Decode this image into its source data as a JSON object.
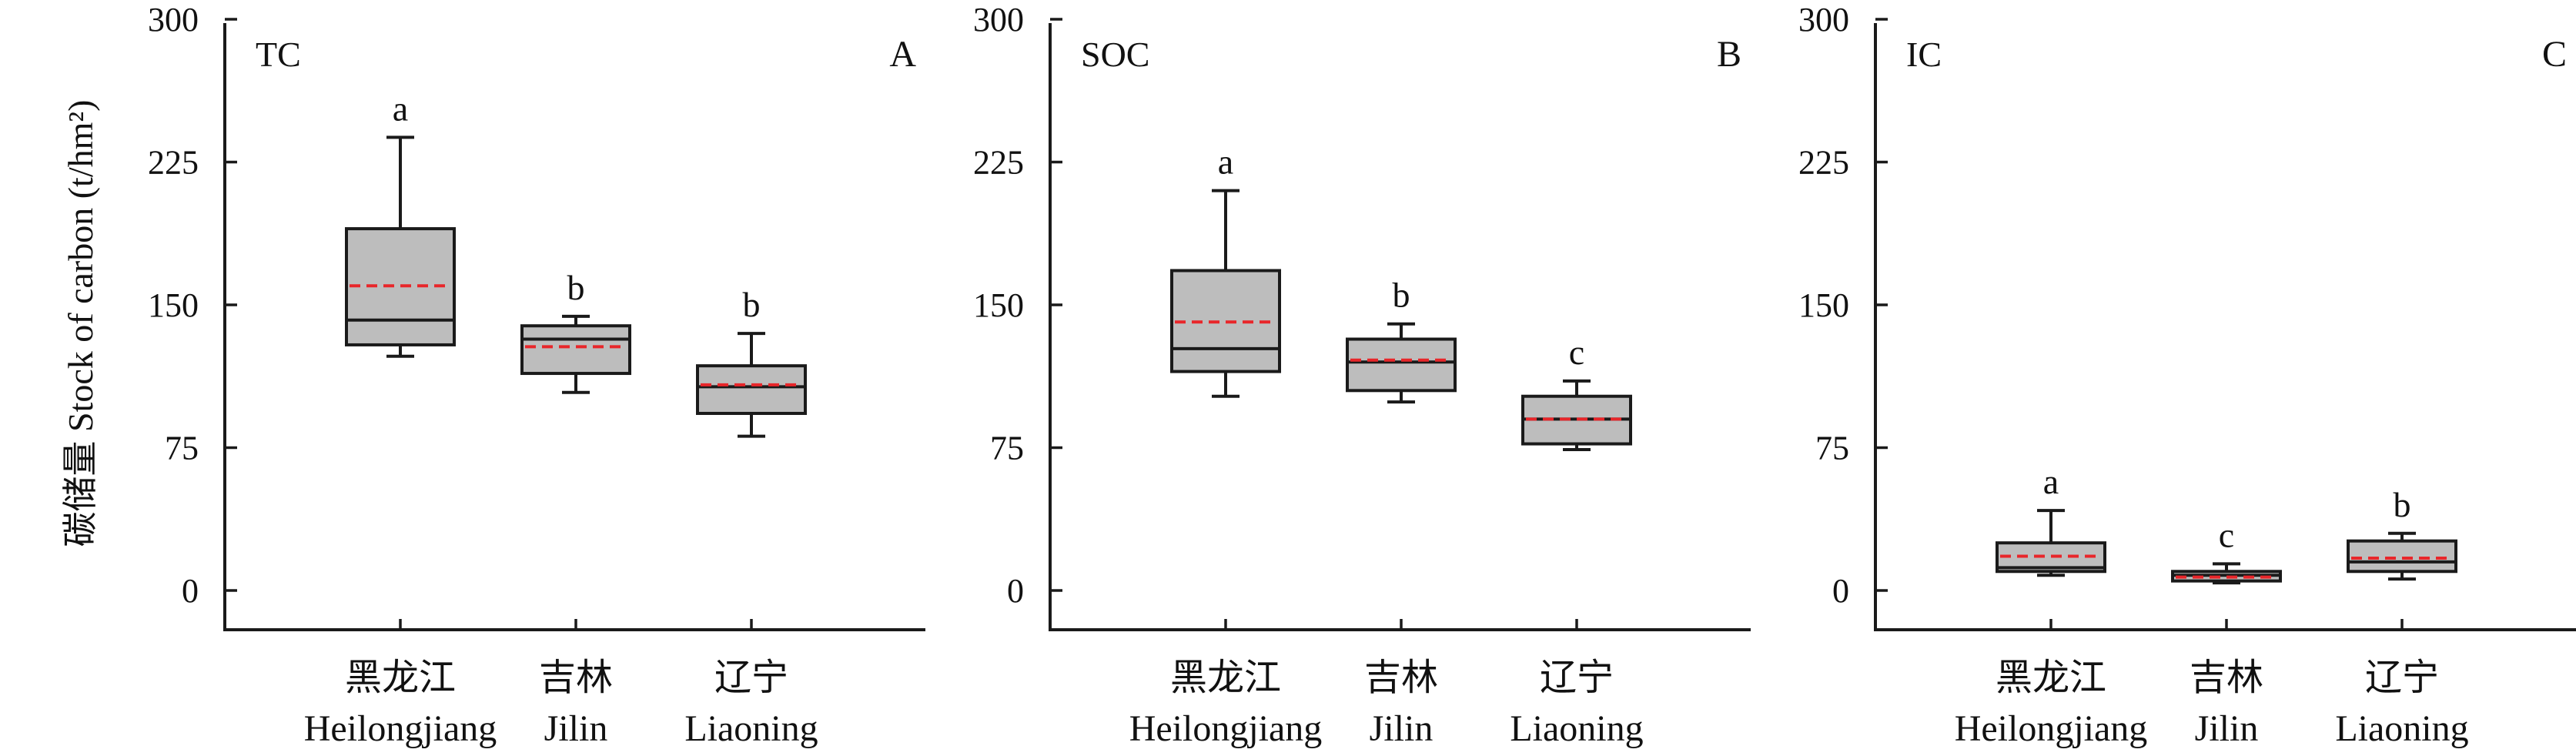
{
  "chart_data": [
    {
      "type": "box",
      "title": "TC",
      "panel_letter": "A",
      "ylabel": "碳储量 Stock of carbon (t/hm²)",
      "ylim": [
        -20,
        300
      ],
      "yticks": [
        0,
        75,
        150,
        225,
        300
      ],
      "categories": [
        {
          "cn": "黑龙江",
          "en": "Heilongjiang"
        },
        {
          "cn": "吉林",
          "en": "Jilin"
        },
        {
          "cn": "辽宁",
          "en": "Liaoning"
        }
      ],
      "boxes": [
        {
          "min": 123,
          "q1": 129,
          "median": 142,
          "q3": 190,
          "max": 238,
          "mean": 160,
          "sig": "a"
        },
        {
          "min": 104,
          "q1": 114,
          "median": 132,
          "q3": 139,
          "max": 144,
          "mean": 128,
          "sig": "b"
        },
        {
          "min": 81,
          "q1": 93,
          "median": 107,
          "q3": 118,
          "max": 135,
          "mean": 108,
          "sig": "b"
        }
      ]
    },
    {
      "type": "box",
      "title": "SOC",
      "panel_letter": "B",
      "ylabel": "",
      "ylim": [
        -20,
        300
      ],
      "yticks": [
        0,
        75,
        150,
        225,
        300
      ],
      "categories": [
        {
          "cn": "黑龙江",
          "en": "Heilongjiang"
        },
        {
          "cn": "吉林",
          "en": "Jilin"
        },
        {
          "cn": "辽宁",
          "en": "Liaoning"
        }
      ],
      "boxes": [
        {
          "min": 102,
          "q1": 115,
          "median": 127,
          "q3": 168,
          "max": 210,
          "mean": 141,
          "sig": "a"
        },
        {
          "min": 99,
          "q1": 105,
          "median": 120,
          "q3": 132,
          "max": 140,
          "mean": 121,
          "sig": "b"
        },
        {
          "min": 74,
          "q1": 77,
          "median": 90,
          "q3": 102,
          "max": 110,
          "mean": 90,
          "sig": "c"
        }
      ]
    },
    {
      "type": "box",
      "title": "IC",
      "panel_letter": "C",
      "ylabel": "",
      "ylim": [
        -20,
        300
      ],
      "yticks": [
        0,
        75,
        150,
        225,
        300
      ],
      "categories": [
        {
          "cn": "黑龙江",
          "en": "Heilongjiang"
        },
        {
          "cn": "吉林",
          "en": "Jilin"
        },
        {
          "cn": "辽宁",
          "en": "Liaoning"
        }
      ],
      "boxes": [
        {
          "min": 8,
          "q1": 10,
          "median": 12,
          "q3": 25,
          "max": 42,
          "mean": 18,
          "sig": "a"
        },
        {
          "min": 4,
          "q1": 5,
          "median": 8,
          "q3": 10,
          "max": 14,
          "mean": 7,
          "sig": "c"
        },
        {
          "min": 6,
          "q1": 10,
          "median": 15,
          "q3": 26,
          "max": 30,
          "mean": 17,
          "sig": "b"
        }
      ]
    }
  ],
  "colors": {
    "box_fill": "#bdbdbd",
    "box_stroke": "#1a1a1a",
    "mean_line": "#e8262a",
    "axis": "#1a1a1a"
  }
}
